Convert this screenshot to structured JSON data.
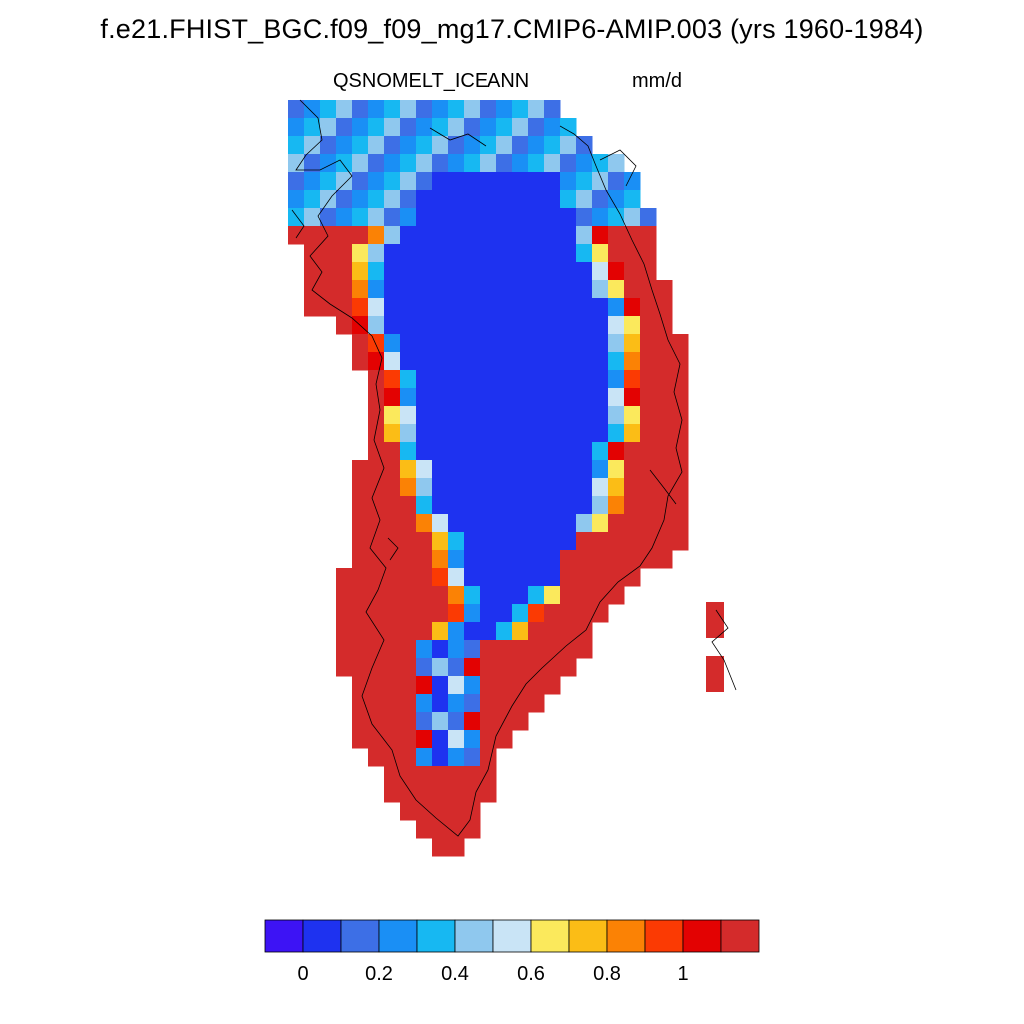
{
  "title": "f.e21.FHIST_BGC.f09_f09_mg17.CMIP6-AMIP.003 (yrs 1960-1984)",
  "left_string": "QSNOMELT_ICE",
  "center_string": "ANN",
  "right_string": "mm/d",
  "colorbar": {
    "colors": [
      "#3d13f5",
      "#1e32f0",
      "#3d6fe6",
      "#1a8ff5",
      "#17b8f2",
      "#8fc8ee",
      "#c9e4f6",
      "#fbe95c",
      "#fbbd16",
      "#fb8205",
      "#fb3a03",
      "#e30202",
      "#d42b2b"
    ],
    "tick_labels": [
      "0",
      "0.2",
      "0.4",
      "0.6",
      "0.8",
      "1"
    ]
  },
  "map": {
    "region": "Greenland",
    "field": "annual mean snowmelt on glacier ice",
    "pattern": "values near 0 over interior ice sheet, increasing toward margins, highest (>1 mm/d) along southern and western coasts"
  }
}
